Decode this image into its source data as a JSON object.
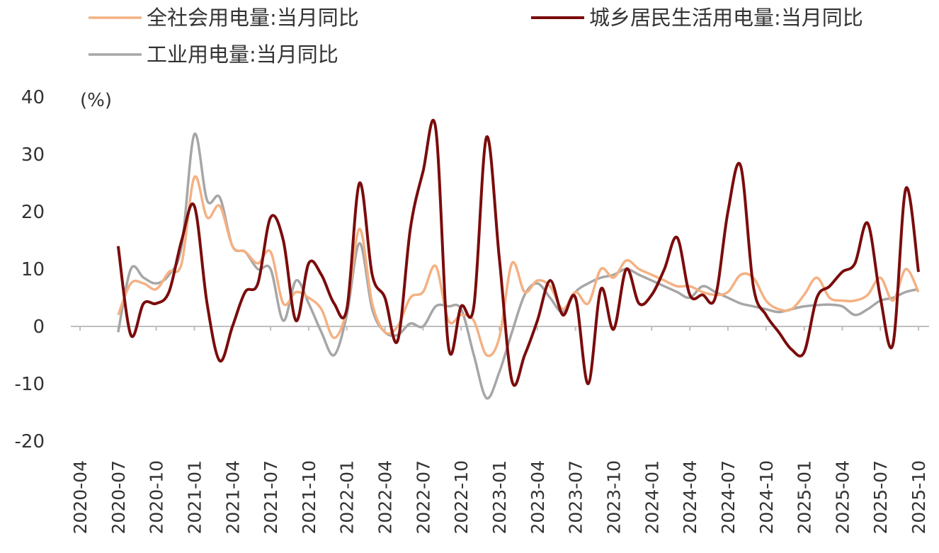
{
  "chart_data": {
    "type": "line",
    "ylabel": "(%)",
    "categories": [
      "2020-04",
      null,
      null,
      "2020-07",
      null,
      null,
      "2020-10",
      null,
      null,
      "2021-01",
      null,
      null,
      "2021-04",
      null,
      null,
      "2021-07",
      null,
      null,
      "2021-10",
      null,
      null,
      "2022-01",
      null,
      null,
      "2022-04",
      null,
      null,
      "2022-07",
      null,
      null,
      "2022-10",
      null,
      null,
      "2023-01",
      null,
      null,
      "2023-04",
      null,
      null,
      "2023-07",
      null,
      null,
      "2023-10",
      null,
      null,
      "2024-01",
      null,
      null,
      "2024-04",
      null,
      null,
      "2024-07",
      null,
      null,
      "2024-10",
      null,
      null,
      "2025-01",
      null,
      null,
      "2025-04",
      null,
      null,
      "2025-07",
      null,
      null,
      "2025-10"
    ],
    "series": [
      {
        "name": "全社会用电量:当月同比",
        "color": "#f4b183",
        "values": [
          null,
          null,
          null,
          2,
          7.5,
          7.5,
          6.5,
          9.5,
          11,
          26,
          19,
          21,
          14,
          13,
          11,
          13,
          4,
          6,
          5,
          3,
          -2,
          3,
          17,
          4,
          -1,
          0,
          5,
          6,
          10.5,
          1,
          2,
          1,
          -5,
          -2,
          11,
          6,
          8,
          7,
          3,
          6,
          4,
          10,
          8.5,
          11.5,
          10,
          9,
          8,
          7,
          7,
          6,
          5.5,
          6,
          9,
          8.5,
          4.5,
          3,
          3,
          5.5,
          8.5,
          5,
          4.5,
          4.5,
          5.5,
          8.5,
          4.5,
          10,
          6
        ]
      },
      {
        "name": "城乡居民生活用电量:当月同比",
        "color": "#7b0c0c",
        "values": [
          null,
          null,
          null,
          14,
          -1.5,
          4,
          4,
          6,
          15,
          21,
          4,
          -6,
          0,
          6,
          7.5,
          19,
          15,
          1,
          11,
          9,
          4,
          3,
          25,
          9,
          5,
          -2.5,
          17,
          27,
          34.5,
          -3.5,
          3.5,
          3.5,
          33,
          12,
          -9.5,
          -5,
          1,
          8,
          2,
          5,
          -10,
          6.5,
          -0.5,
          10,
          4,
          5.5,
          10,
          15.5,
          5.5,
          5.5,
          5,
          20,
          28,
          7,
          2,
          -1,
          -4,
          -4.5,
          5,
          7,
          9.5,
          11,
          18,
          5,
          -3,
          24,
          9.5
        ]
      },
      {
        "name": "工业用电量:当月同比",
        "color": "#a6a6a6",
        "values": [
          null,
          null,
          null,
          -1,
          10,
          8.5,
          7.5,
          9,
          14,
          33.5,
          22,
          22.5,
          14,
          13,
          10,
          10,
          1,
          8,
          4,
          -1,
          -5,
          2,
          14.5,
          3,
          -1,
          -1.5,
          0.5,
          0,
          3.5,
          3.5,
          3,
          -5,
          -12.5,
          -8,
          -1,
          5.5,
          7.5,
          5,
          2.5,
          6,
          7.5,
          8.5,
          9,
          10,
          9,
          8,
          7,
          6,
          5,
          7,
          6,
          5,
          4,
          3.5,
          3,
          2.5,
          3,
          3.5,
          3.7,
          3.8,
          3.5,
          2,
          3,
          4.5,
          5,
          6,
          6.5
        ]
      }
    ],
    "ylim": [
      -20,
      40
    ],
    "yticks": [
      -20,
      -10,
      0,
      10,
      20,
      30,
      40
    ],
    "grid": false
  }
}
